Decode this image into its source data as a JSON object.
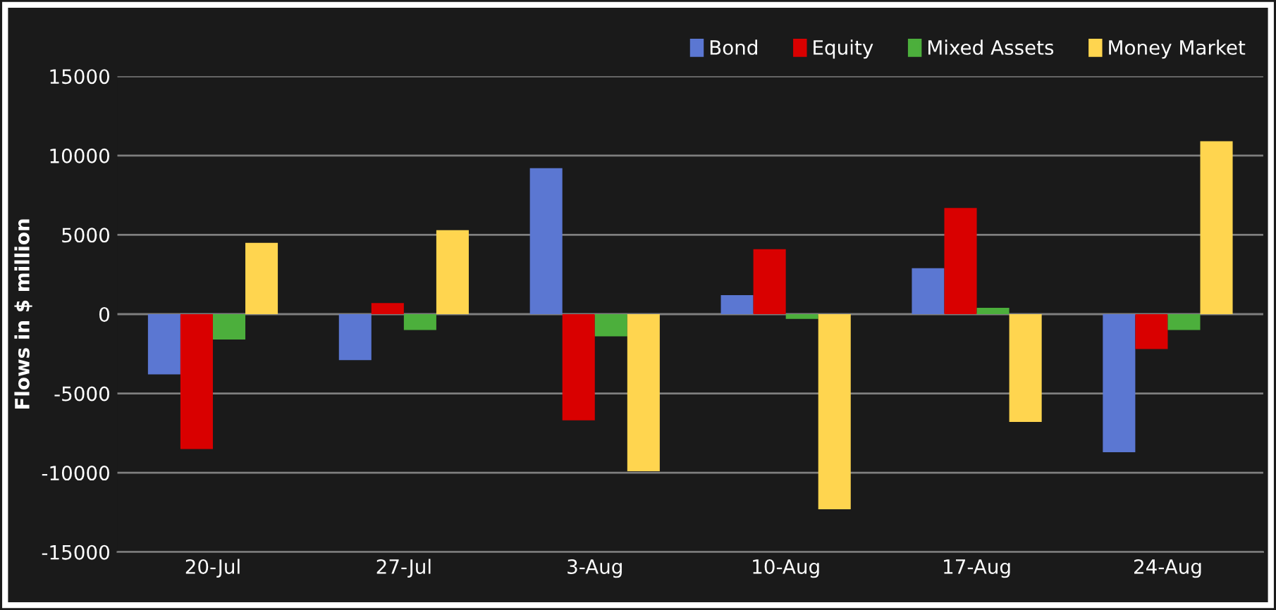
{
  "chart_data": {
    "type": "bar",
    "ylabel": "Flows in $ million",
    "categories": [
      "20-Jul",
      "27-Jul",
      "3-Aug",
      "10-Aug",
      "17-Aug",
      "24-Aug"
    ],
    "series": [
      {
        "name": "Bond",
        "color": "#5b77d2",
        "values": [
          -3800,
          -2900,
          9200,
          1200,
          2900,
          -8700
        ]
      },
      {
        "name": "Equity",
        "color": "#d90000",
        "values": [
          -8500,
          700,
          -6700,
          4100,
          6700,
          -2200
        ]
      },
      {
        "name": "Mixed Assets",
        "color": "#4caf3c",
        "values": [
          -1600,
          -1000,
          -1400,
          -300,
          400,
          -1000
        ]
      },
      {
        "name": "Money Market",
        "color": "#ffd54f",
        "values": [
          4500,
          5300,
          -9900,
          -12300,
          -6800,
          10900
        ]
      }
    ],
    "ylim": [
      -15000,
      15000
    ],
    "yticks": [
      -15000,
      -10000,
      -5000,
      0,
      5000,
      10000,
      15000
    ],
    "grid": "y",
    "legend": "top right"
  }
}
